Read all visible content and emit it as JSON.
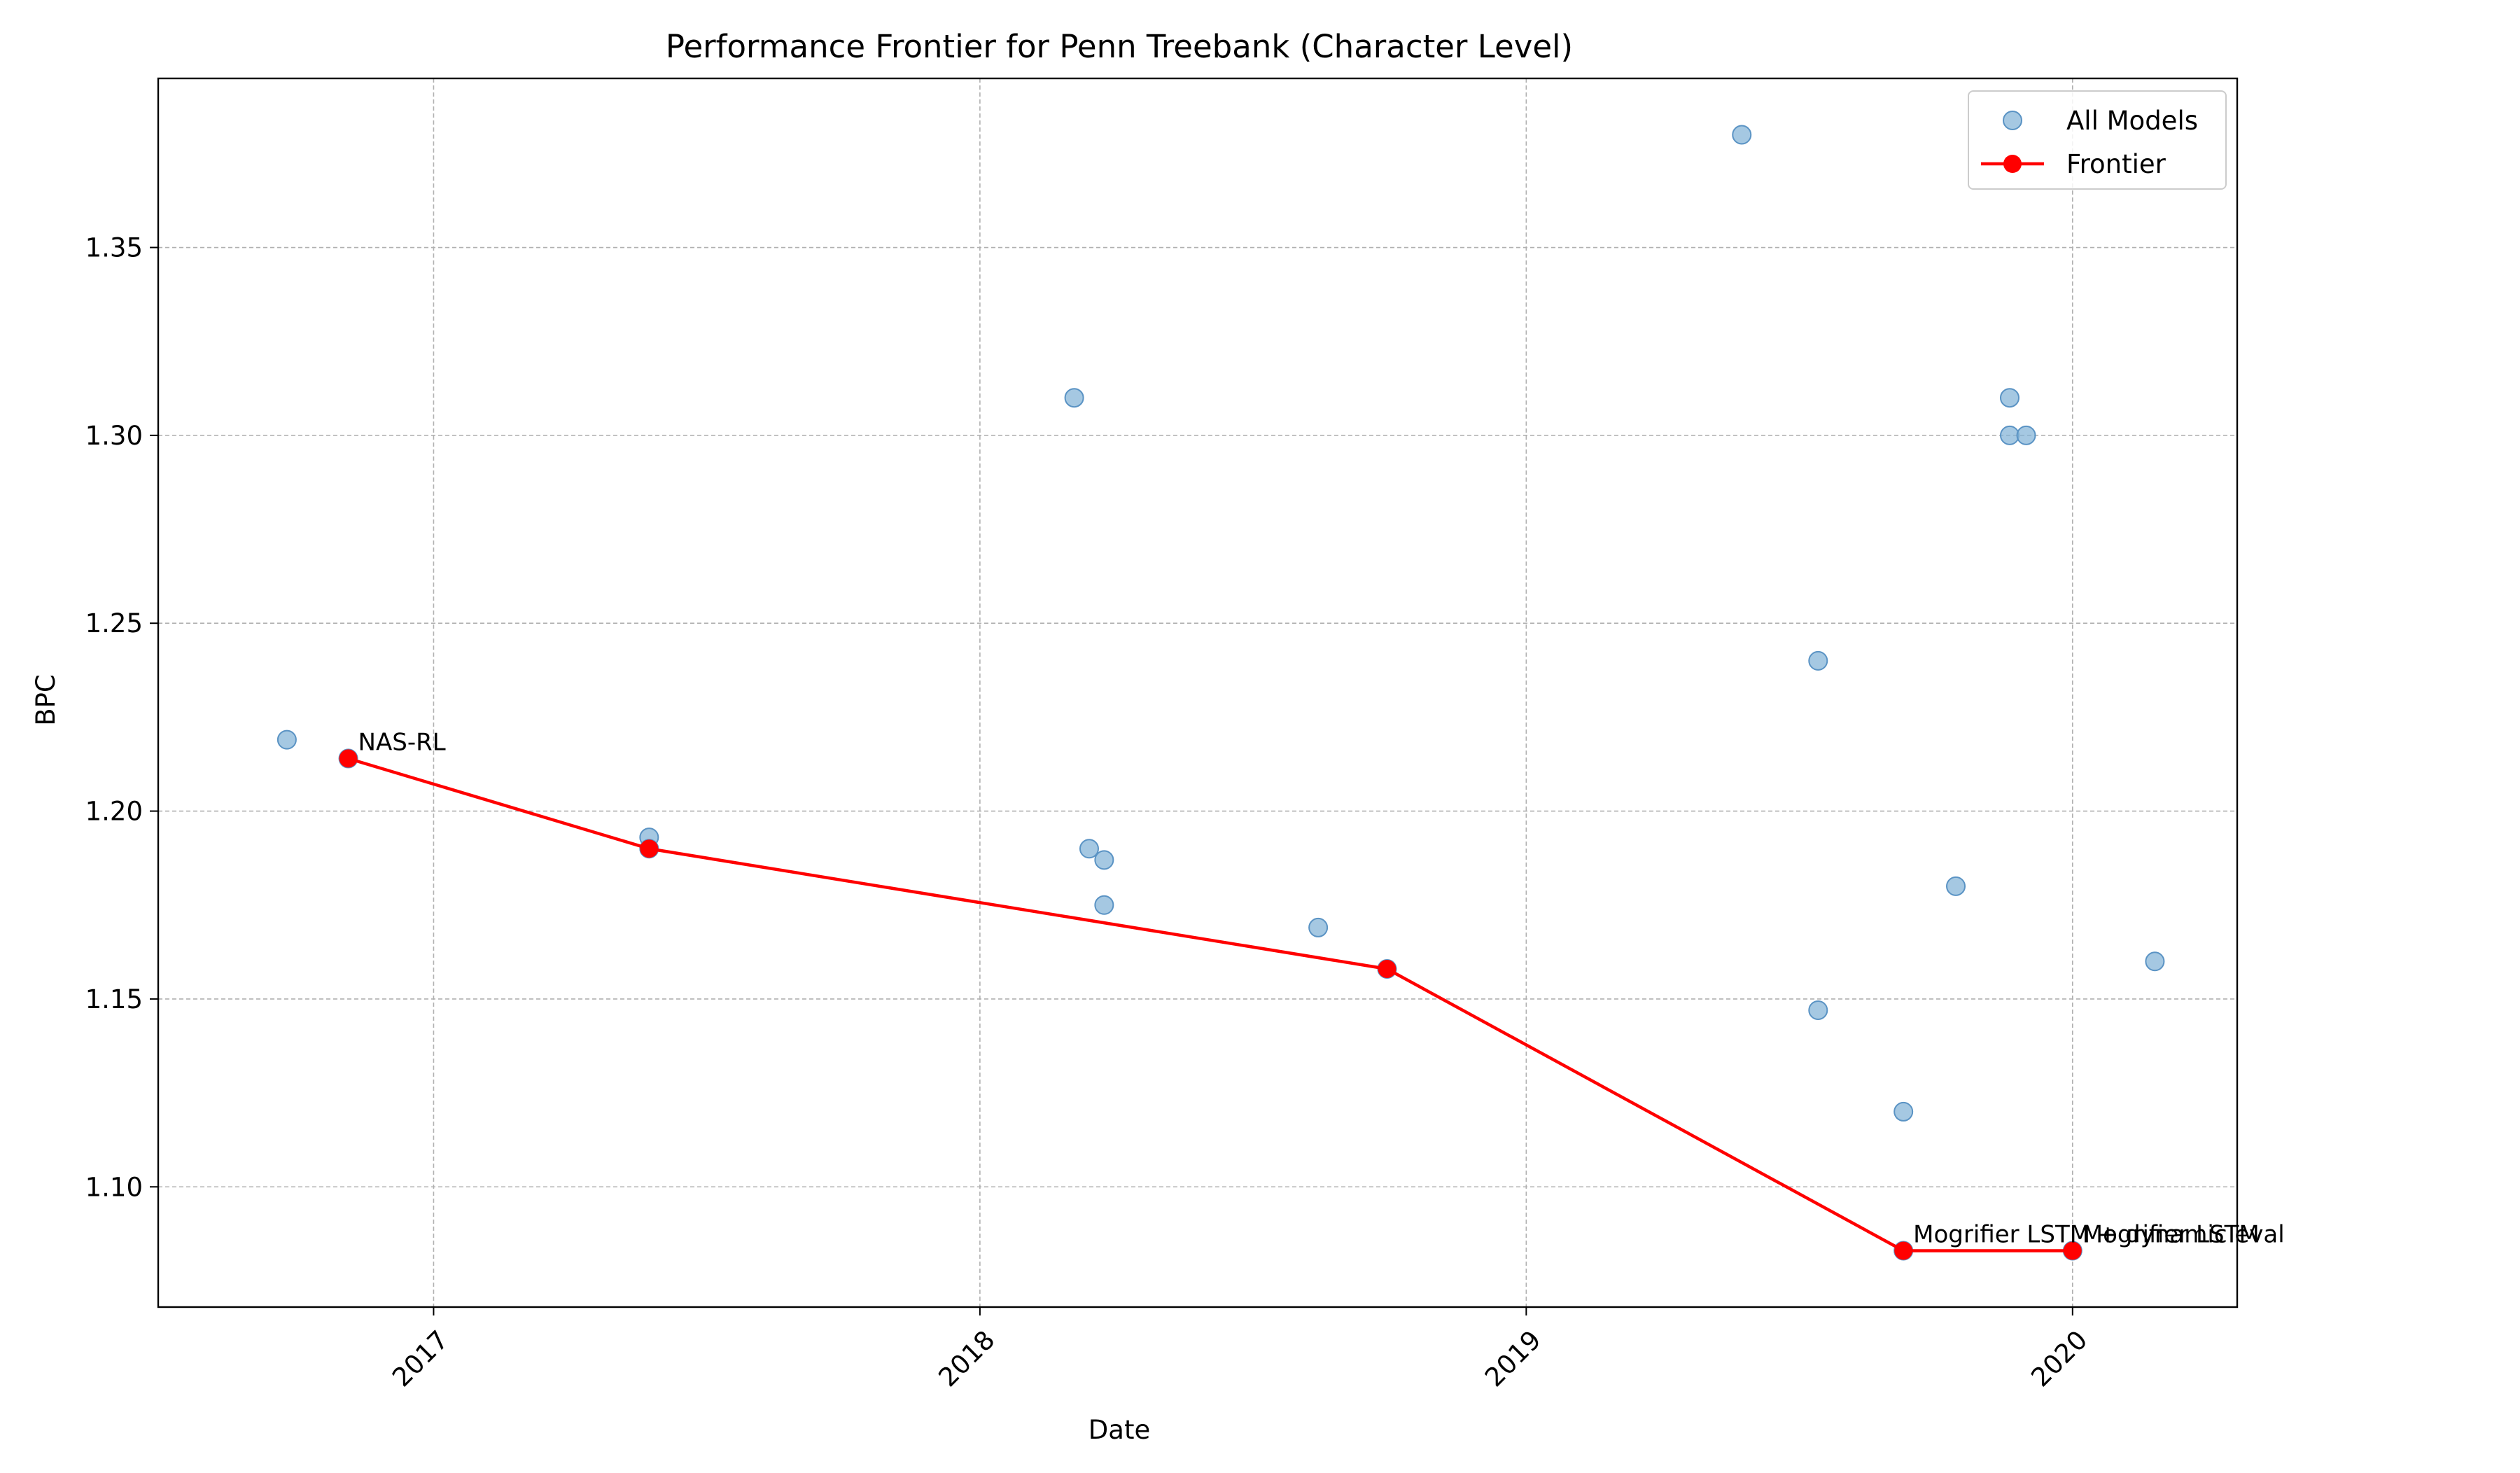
{
  "chart_data": {
    "type": "scatter",
    "title": "Performance Frontier for Penn Treebank (Character Level)",
    "xlabel": "Date",
    "ylabel": "BPC",
    "xlim": [
      "2016-07-01",
      "2020-04-20"
    ],
    "ylim": [
      1.068,
      1.395
    ],
    "grid": true,
    "grid_style": "dashed",
    "legend_position": "top-right",
    "x_ticks": [
      {
        "value": "2017-01-01",
        "label": "2017"
      },
      {
        "value": "2018-01-01",
        "label": "2018"
      },
      {
        "value": "2019-01-01",
        "label": "2019"
      },
      {
        "value": "2020-01-01",
        "label": "2020"
      }
    ],
    "y_ticks": [
      {
        "value": 1.1,
        "label": "1.10"
      },
      {
        "value": 1.15,
        "label": "1.15"
      },
      {
        "value": 1.2,
        "label": "1.20"
      },
      {
        "value": 1.25,
        "label": "1.25"
      },
      {
        "value": 1.3,
        "label": "1.30"
      },
      {
        "value": 1.35,
        "label": "1.35"
      }
    ],
    "series": [
      {
        "name": "All Models",
        "kind": "scatter",
        "color": "#7fb0d6",
        "points": [
          {
            "x": "2016-09-25",
            "y": 1.219
          },
          {
            "x": "2016-11-05",
            "y": 1.214
          },
          {
            "x": "2017-05-25",
            "y": 1.193
          },
          {
            "x": "2017-05-25",
            "y": 1.19
          },
          {
            "x": "2018-03-05",
            "y": 1.31
          },
          {
            "x": "2018-03-15",
            "y": 1.19
          },
          {
            "x": "2018-03-25",
            "y": 1.187
          },
          {
            "x": "2018-03-25",
            "y": 1.175
          },
          {
            "x": "2018-08-15",
            "y": 1.169
          },
          {
            "x": "2018-09-30",
            "y": 1.158
          },
          {
            "x": "2019-05-25",
            "y": 1.38
          },
          {
            "x": "2019-07-15",
            "y": 1.24
          },
          {
            "x": "2019-07-15",
            "y": 1.147
          },
          {
            "x": "2019-09-10",
            "y": 1.12
          },
          {
            "x": "2019-09-10",
            "y": 1.083
          },
          {
            "x": "2019-10-15",
            "y": 1.18
          },
          {
            "x": "2019-11-20",
            "y": 1.31
          },
          {
            "x": "2019-11-20",
            "y": 1.3
          },
          {
            "x": "2019-12-01",
            "y": 1.3
          },
          {
            "x": "2020-01-01",
            "y": 1.083
          },
          {
            "x": "2020-02-25",
            "y": 1.16
          }
        ]
      },
      {
        "name": "Frontier",
        "kind": "line",
        "color": "#ff0000",
        "points": [
          {
            "x": "2016-11-05",
            "y": 1.214
          },
          {
            "x": "2017-05-25",
            "y": 1.19
          },
          {
            "x": "2018-09-30",
            "y": 1.158
          },
          {
            "x": "2019-09-10",
            "y": 1.083
          },
          {
            "x": "2020-01-01",
            "y": 1.083
          }
        ]
      }
    ],
    "annotations": [
      {
        "x": "2016-11-05",
        "y": 1.214,
        "text": "NAS-RL"
      },
      {
        "x": "2019-09-10",
        "y": 1.083,
        "text": "Mogrifier LSTM + dynamic eval"
      },
      {
        "x": "2020-01-01",
        "y": 1.083,
        "text": "Mogrifier LSTM"
      }
    ]
  }
}
